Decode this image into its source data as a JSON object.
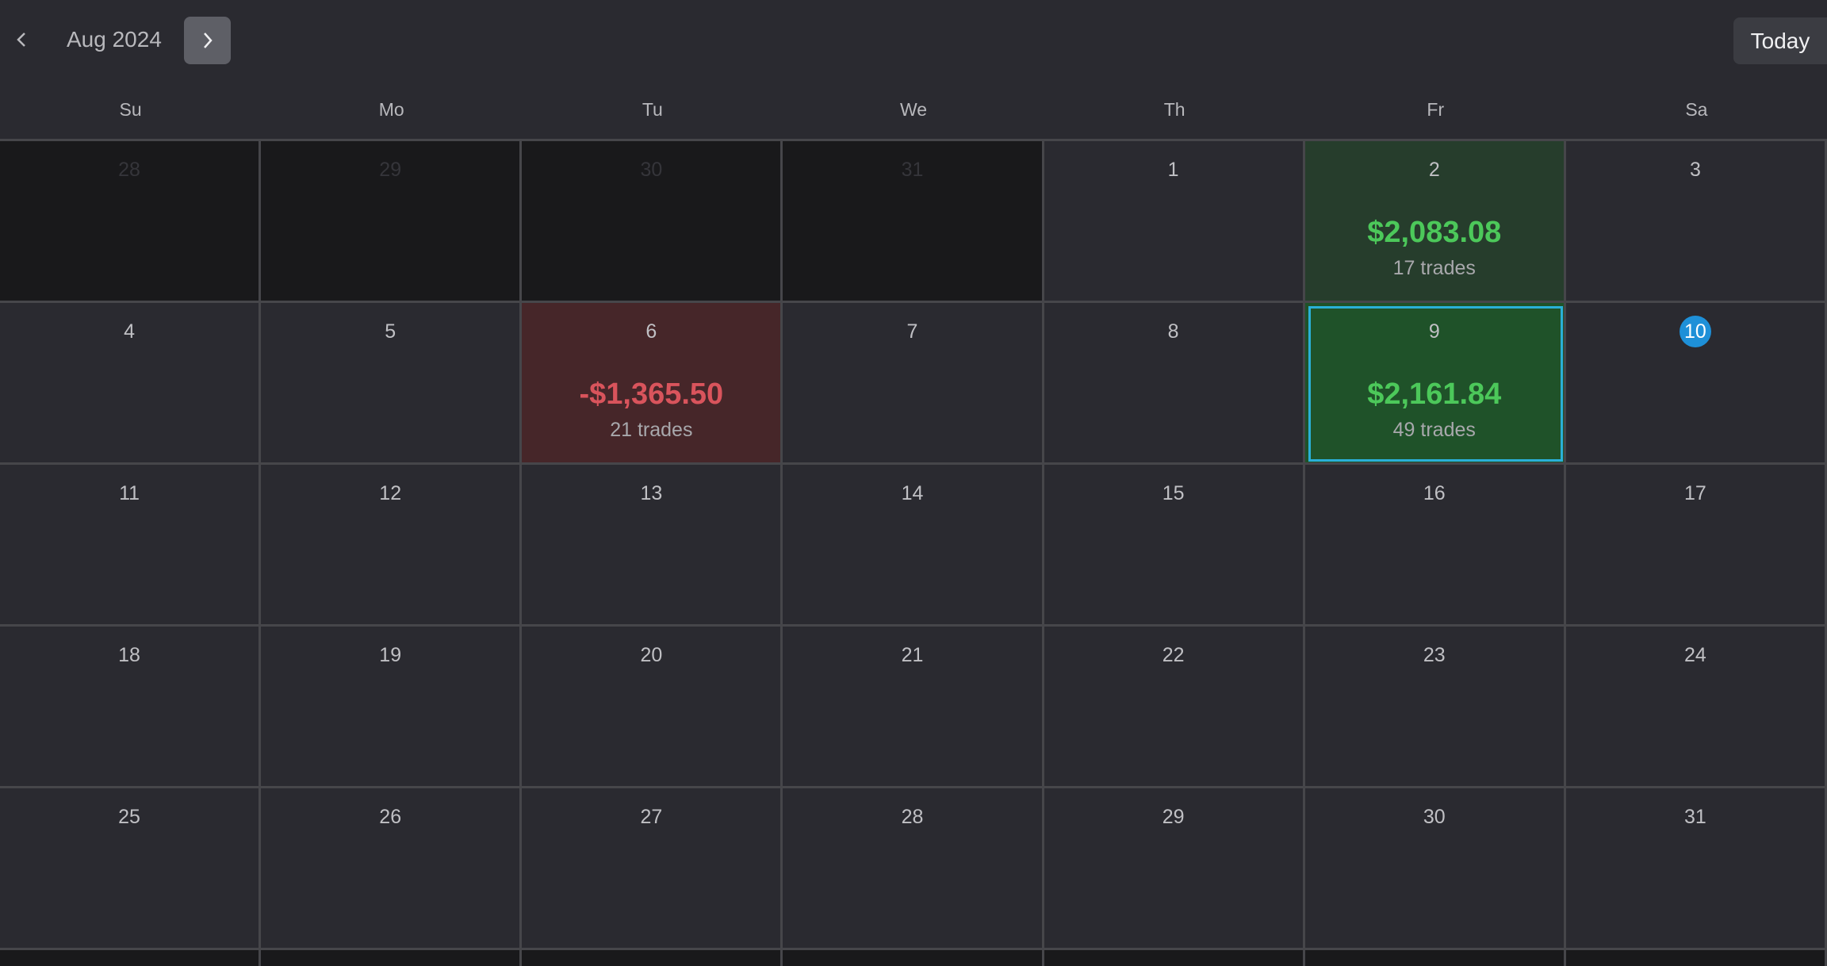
{
  "header": {
    "month_label": "Aug 2024",
    "today_label": "Today"
  },
  "weekdays": [
    "Su",
    "Mo",
    "Tu",
    "We",
    "Th",
    "Fr",
    "Sa"
  ],
  "weeks": [
    [
      {
        "day": "28",
        "state": "outside"
      },
      {
        "day": "29",
        "state": "outside"
      },
      {
        "day": "30",
        "state": "outside"
      },
      {
        "day": "31",
        "state": "outside"
      },
      {
        "day": "1"
      },
      {
        "day": "2",
        "state": "profit",
        "pnl": "$2,083.08",
        "trades": "17 trades"
      },
      {
        "day": "3"
      }
    ],
    [
      {
        "day": "4"
      },
      {
        "day": "5"
      },
      {
        "day": "6",
        "state": "loss",
        "pnl": "-$1,365.50",
        "trades": "21 trades"
      },
      {
        "day": "7"
      },
      {
        "day": "8"
      },
      {
        "day": "9",
        "state": "selected",
        "pnl": "$2,161.84",
        "trades": "49 trades"
      },
      {
        "day": "10",
        "state": "today"
      }
    ],
    [
      {
        "day": "11"
      },
      {
        "day": "12"
      },
      {
        "day": "13"
      },
      {
        "day": "14"
      },
      {
        "day": "15"
      },
      {
        "day": "16"
      },
      {
        "day": "17"
      }
    ],
    [
      {
        "day": "18"
      },
      {
        "day": "19"
      },
      {
        "day": "20"
      },
      {
        "day": "21"
      },
      {
        "day": "22"
      },
      {
        "day": "23"
      },
      {
        "day": "24"
      }
    ],
    [
      {
        "day": "25"
      },
      {
        "day": "26"
      },
      {
        "day": "27"
      },
      {
        "day": "28"
      },
      {
        "day": "29"
      },
      {
        "day": "30"
      },
      {
        "day": "31"
      }
    ]
  ]
}
